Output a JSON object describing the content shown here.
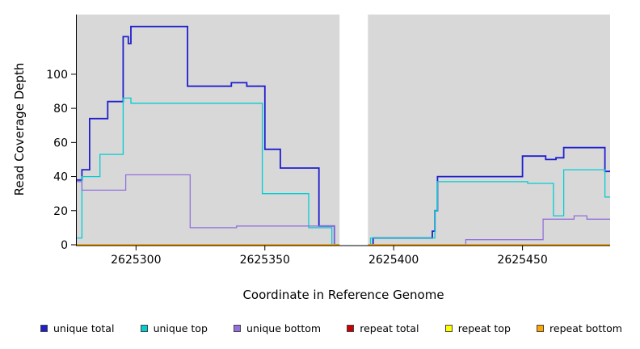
{
  "figure": {
    "x_axis_title": "Coordinate in Reference Genome",
    "y_axis_title": "Read Coverage Depth"
  },
  "chart_data": {
    "type": "line",
    "step": true,
    "title": "",
    "xlabel": "Coordinate in Reference Genome",
    "ylabel": "Read Coverage Depth",
    "xlim": [
      2625277,
      2625484
    ],
    "ylim": [
      0,
      135
    ],
    "xticks": [
      2625300,
      2625350,
      2625400,
      2625450
    ],
    "yticks": [
      0,
      20,
      40,
      60,
      80,
      100
    ],
    "grid": false,
    "legend_position": "bottom",
    "panel_background": "#d8d8d8",
    "axis_color": "#000000",
    "gap_region": {
      "x_start": 2625379,
      "x_end": 2625390,
      "color": "#ffffff"
    },
    "series": [
      {
        "name": "unique total",
        "color": "#1f1fce",
        "width": 1.8,
        "points": [
          [
            2625277,
            38
          ],
          [
            2625279,
            38
          ],
          [
            2625279,
            44
          ],
          [
            2625282,
            44
          ],
          [
            2625282,
            74
          ],
          [
            2625289,
            74
          ],
          [
            2625289,
            84
          ],
          [
            2625295,
            84
          ],
          [
            2625295,
            122
          ],
          [
            2625297,
            122
          ],
          [
            2625297,
            118
          ],
          [
            2625298,
            118
          ],
          [
            2625298,
            128
          ],
          [
            2625320,
            128
          ],
          [
            2625320,
            93
          ],
          [
            2625337,
            93
          ],
          [
            2625337,
            95
          ],
          [
            2625343,
            95
          ],
          [
            2625343,
            93
          ],
          [
            2625350,
            93
          ],
          [
            2625350,
            56
          ],
          [
            2625356,
            56
          ],
          [
            2625356,
            45
          ],
          [
            2625371,
            45
          ],
          [
            2625371,
            11
          ],
          [
            2625377,
            11
          ],
          [
            2625377,
            0
          ],
          [
            2625392,
            0
          ],
          [
            2625392,
            4
          ],
          [
            2625415,
            4
          ],
          [
            2625415,
            8
          ],
          [
            2625416,
            8
          ],
          [
            2625416,
            20
          ],
          [
            2625417,
            20
          ],
          [
            2625417,
            40
          ],
          [
            2625450,
            40
          ],
          [
            2625450,
            52
          ],
          [
            2625459,
            52
          ],
          [
            2625459,
            50
          ],
          [
            2625463,
            50
          ],
          [
            2625463,
            51
          ],
          [
            2625466,
            51
          ],
          [
            2625466,
            57
          ],
          [
            2625482,
            57
          ],
          [
            2625482,
            43
          ],
          [
            2625484,
            43
          ]
        ]
      },
      {
        "name": "unique top",
        "color": "#00ced1",
        "width": 1.3,
        "points": [
          [
            2625277,
            4
          ],
          [
            2625279,
            4
          ],
          [
            2625279,
            40
          ],
          [
            2625286,
            40
          ],
          [
            2625286,
            53
          ],
          [
            2625295,
            53
          ],
          [
            2625295,
            86
          ],
          [
            2625298,
            86
          ],
          [
            2625298,
            83
          ],
          [
            2625349,
            83
          ],
          [
            2625349,
            30
          ],
          [
            2625367,
            30
          ],
          [
            2625367,
            10
          ],
          [
            2625376,
            10
          ],
          [
            2625376,
            0
          ],
          [
            2625391,
            0
          ],
          [
            2625391,
            4
          ],
          [
            2625416,
            4
          ],
          [
            2625416,
            20
          ],
          [
            2625417,
            20
          ],
          [
            2625417,
            37
          ],
          [
            2625452,
            37
          ],
          [
            2625452,
            36
          ],
          [
            2625462,
            36
          ],
          [
            2625462,
            17
          ],
          [
            2625466,
            17
          ],
          [
            2625466,
            44
          ],
          [
            2625482,
            44
          ],
          [
            2625482,
            28
          ],
          [
            2625484,
            28
          ]
        ]
      },
      {
        "name": "unique bottom",
        "color": "#9370db",
        "width": 1.3,
        "points": [
          [
            2625277,
            37
          ],
          [
            2625279,
            37
          ],
          [
            2625279,
            32
          ],
          [
            2625296,
            32
          ],
          [
            2625296,
            41
          ],
          [
            2625321,
            41
          ],
          [
            2625321,
            10
          ],
          [
            2625339,
            10
          ],
          [
            2625339,
            11
          ],
          [
            2625377,
            11
          ],
          [
            2625377,
            0
          ],
          [
            2625428,
            0
          ],
          [
            2625428,
            3
          ],
          [
            2625458,
            3
          ],
          [
            2625458,
            15
          ],
          [
            2625470,
            15
          ],
          [
            2625470,
            17
          ],
          [
            2625475,
            17
          ],
          [
            2625475,
            15
          ],
          [
            2625484,
            15
          ]
        ]
      },
      {
        "name": "repeat total",
        "color": "#cc0000",
        "width": 1.2,
        "points": [
          [
            2625277,
            0
          ],
          [
            2625484,
            0
          ]
        ]
      },
      {
        "name": "repeat top",
        "color": "#ffff00",
        "width": 1.2,
        "points": [
          [
            2625277,
            0
          ],
          [
            2625484,
            0
          ]
        ]
      },
      {
        "name": "repeat bottom",
        "color": "#ffa500",
        "width": 1.4,
        "points": [
          [
            2625277,
            0
          ],
          [
            2625484,
            0
          ]
        ]
      }
    ]
  }
}
